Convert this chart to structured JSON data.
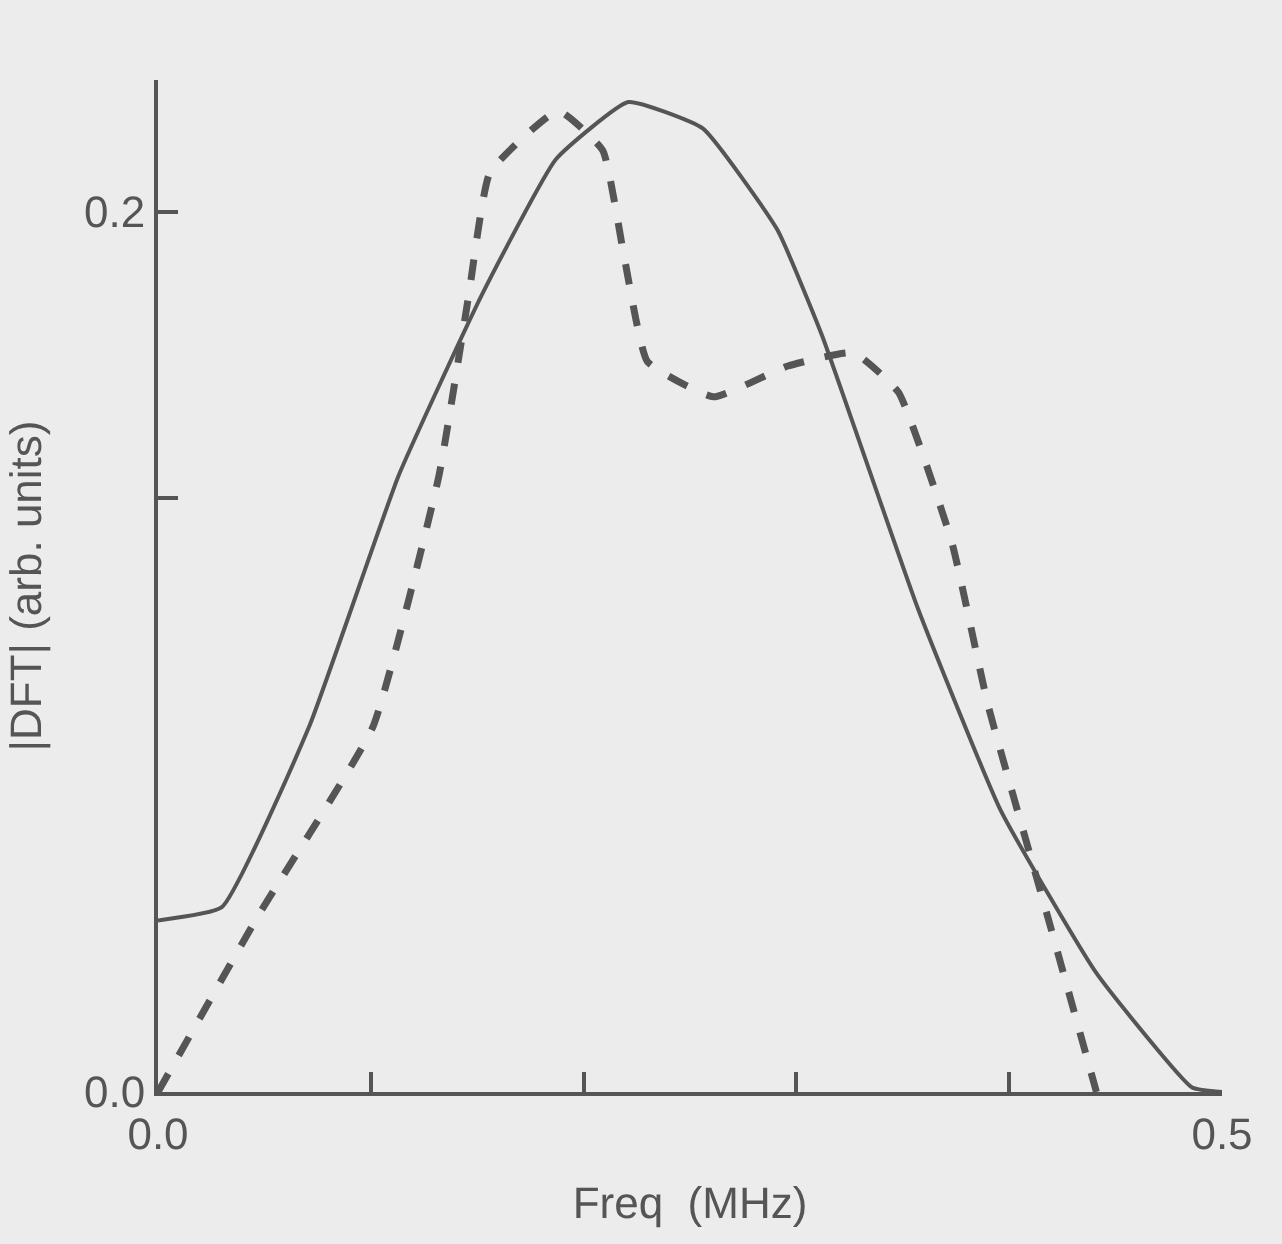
{
  "chart_data": {
    "type": "line",
    "xlabel": "Freq  (MHz)",
    "ylabel": "|DFT| (arb. units)",
    "xlim": [
      0,
      0.5
    ],
    "xticks": [
      {
        "value": 0,
        "label": "0.0"
      },
      {
        "value": 0.1,
        "label": null
      },
      {
        "value": 0.2,
        "label": null
      },
      {
        "value": 0.3,
        "label": null
      },
      {
        "value": 0.4,
        "label": null
      },
      {
        "value": 0.5,
        "label": "0.5"
      }
    ],
    "ylim": [
      0,
      0.23
    ],
    "yticks": [
      {
        "value": 0,
        "label": "0.0"
      },
      {
        "value": 0.135,
        "label": null
      },
      {
        "value": 0.2,
        "label": "0.2"
      }
    ],
    "grid": false,
    "marker": "none",
    "series": [
      {
        "color": "#555555",
        "line_style": "solid",
        "x": [
          0,
          0.03,
          0.071,
          0.113,
          0.152,
          0.187,
          0.221,
          0.256,
          0.291,
          0.312,
          0.357,
          0.396,
          0.441,
          0.486,
          0.5
        ],
        "values": [
          0.039,
          0.042,
          0.083,
          0.14,
          0.181,
          0.212,
          0.225,
          0.219,
          0.196,
          0.172,
          0.11,
          0.064,
          0.027,
          0.001,
          0
        ]
      },
      {
        "color": "#555555",
        "line_style": "dashed",
        "x": [
          0,
          0.047,
          0.101,
          0.132,
          0.146,
          0.156,
          0.188,
          0.209,
          0.219,
          0.23,
          0.261,
          0.296,
          0.327,
          0.348,
          0.373,
          0.39,
          0.418,
          0.441
        ],
        "values": [
          0,
          0.04,
          0.083,
          0.14,
          0.181,
          0.209,
          0.223,
          0.214,
          0.19,
          0.166,
          0.158,
          0.165,
          0.168,
          0.159,
          0.125,
          0.088,
          0.04,
          0
        ]
      }
    ]
  }
}
